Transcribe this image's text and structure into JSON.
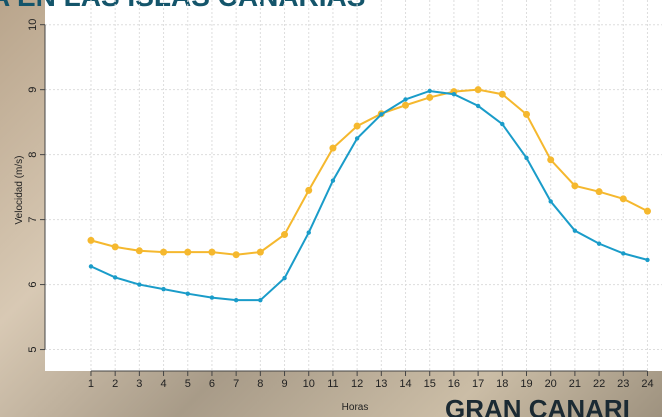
{
  "chart_data": {
    "type": "line",
    "title": "A EN LAS ISLAS CANARIAS",
    "annotation": "GRAN CANARI",
    "x_label": "Horas",
    "y_label": "Velocidad (m/s)",
    "x": [
      1,
      2,
      3,
      4,
      5,
      6,
      7,
      8,
      9,
      10,
      11,
      12,
      13,
      14,
      15,
      16,
      17,
      18,
      19,
      20,
      21,
      22,
      23,
      24
    ],
    "series": [
      {
        "color": "#f5b82e",
        "values": [
          6.68,
          6.58,
          6.52,
          6.5,
          6.5,
          6.5,
          6.46,
          6.5,
          6.77,
          7.45,
          8.1,
          8.44,
          8.63,
          8.76,
          8.88,
          8.97,
          9.0,
          8.93,
          8.62,
          7.92,
          7.52,
          7.43,
          7.32,
          7.13
        ]
      },
      {
        "color": "#1a9cc9",
        "values": [
          6.28,
          6.11,
          6.0,
          5.93,
          5.86,
          5.8,
          5.76,
          5.76,
          6.1,
          6.8,
          7.6,
          8.25,
          8.62,
          8.85,
          8.98,
          8.93,
          8.75,
          8.47,
          7.95,
          7.28,
          6.83,
          6.63,
          6.48,
          6.38
        ]
      }
    ],
    "xlim": [
      -0.9,
      24.6
    ],
    "ylim": [
      4.67,
      10.38
    ],
    "xticks": [
      1,
      2,
      3,
      4,
      5,
      6,
      7,
      8,
      9,
      10,
      11,
      12,
      13,
      14,
      15,
      16,
      17,
      18,
      19,
      20,
      21,
      22,
      23,
      24
    ],
    "yticks": [
      5,
      6,
      7,
      8,
      9,
      10
    ],
    "grid": true
  }
}
